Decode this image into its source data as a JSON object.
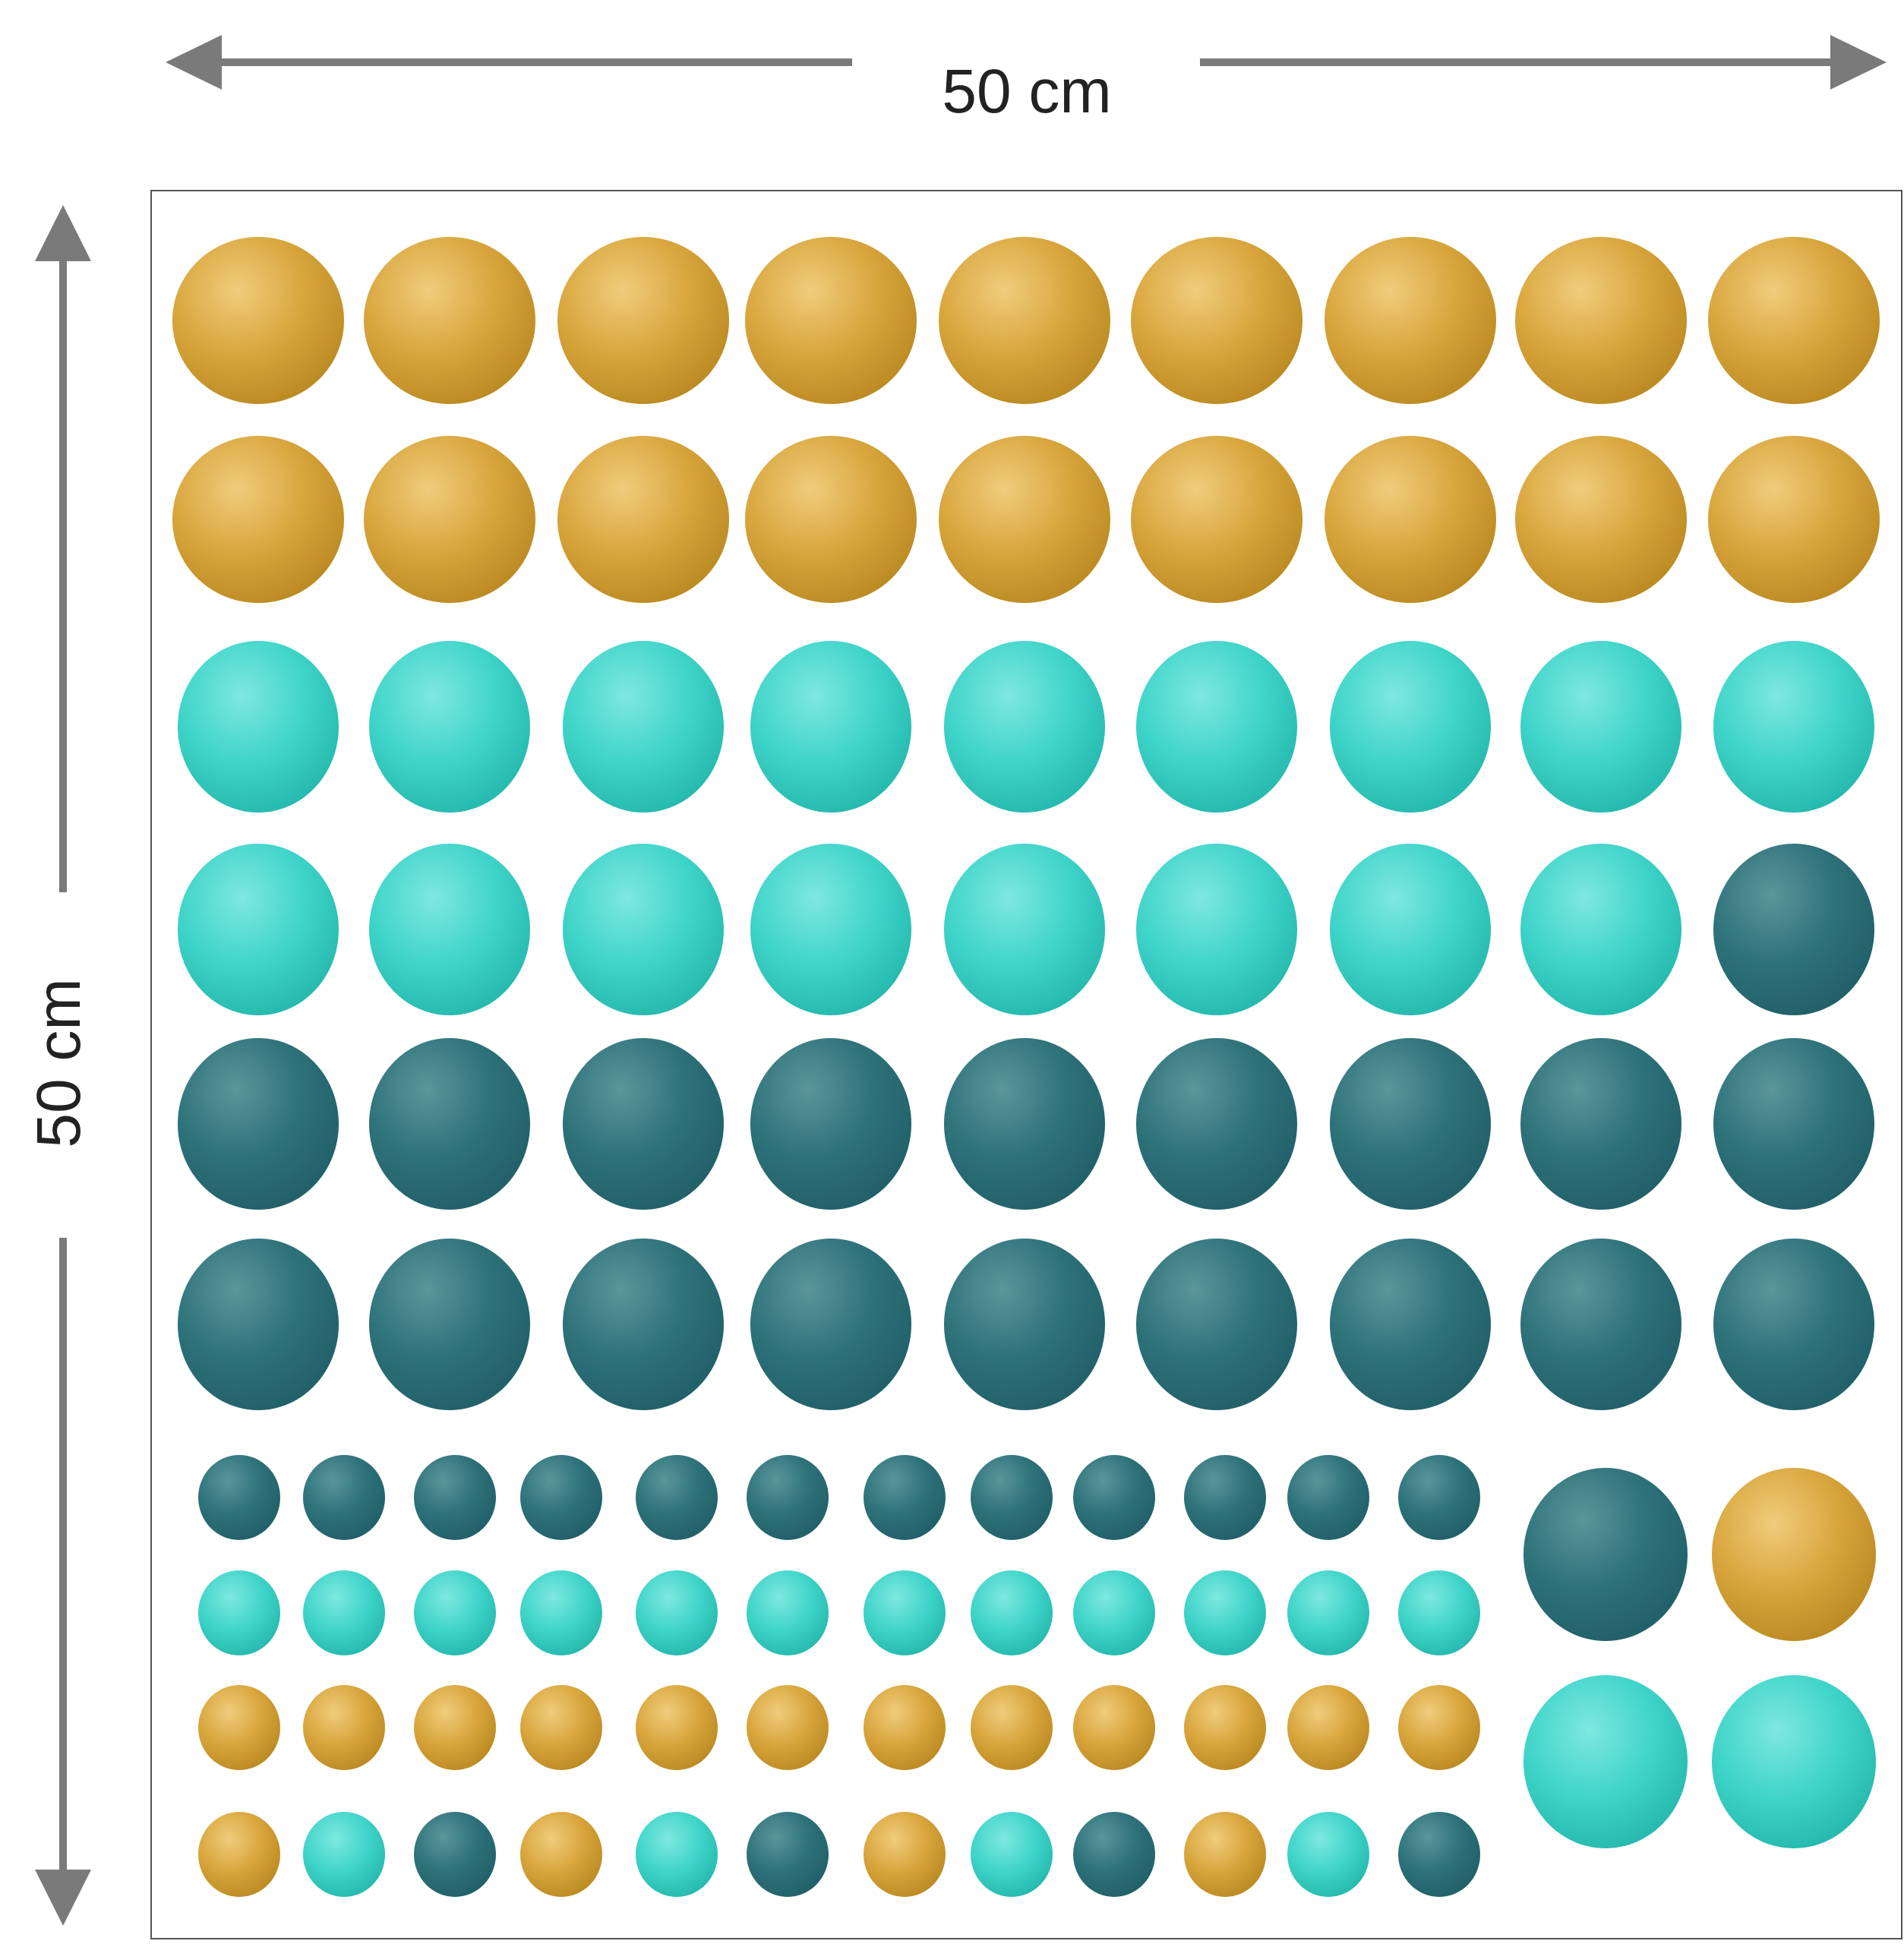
{
  "dimensions": {
    "width_label": "50 cm",
    "height_label": "50 cm"
  },
  "colors": {
    "arrow": "#7a7a7a",
    "mustard": "#d8a53c",
    "turquoise": "#3fd4c9",
    "teal": "#2e727a",
    "border": "#555555"
  },
  "sheet": {
    "large_dot_rows": [
      [
        "mustard",
        "mustard",
        "mustard",
        "mustard",
        "mustard",
        "mustard",
        "mustard",
        "mustard",
        "mustard"
      ],
      [
        "mustard",
        "mustard",
        "mustard",
        "mustard",
        "mustard",
        "mustard",
        "mustard",
        "mustard",
        "mustard"
      ],
      [
        "turquoise",
        "turquoise",
        "turquoise",
        "turquoise",
        "turquoise",
        "turquoise",
        "turquoise",
        "turquoise",
        "turquoise"
      ],
      [
        "turquoise",
        "turquoise",
        "turquoise",
        "turquoise",
        "turquoise",
        "turquoise",
        "turquoise",
        "turquoise",
        "teal"
      ],
      [
        "teal",
        "teal",
        "teal",
        "teal",
        "teal",
        "teal",
        "teal",
        "teal",
        "teal"
      ],
      [
        "teal",
        "teal",
        "teal",
        "teal",
        "teal",
        "teal",
        "teal",
        "teal",
        "teal"
      ]
    ],
    "small_dot_rows": [
      [
        "teal",
        "teal",
        "teal",
        "teal",
        "teal",
        "teal",
        "teal",
        "teal",
        "teal",
        "teal",
        "teal",
        "teal"
      ],
      [
        "turquoise",
        "turquoise",
        "turquoise",
        "turquoise",
        "turquoise",
        "turquoise",
        "turquoise",
        "turquoise",
        "turquoise",
        "turquoise",
        "turquoise",
        "turquoise"
      ],
      [
        "mustard",
        "mustard",
        "mustard",
        "mustard",
        "mustard",
        "mustard",
        "mustard",
        "mustard",
        "mustard",
        "mustard",
        "mustard",
        "mustard"
      ],
      [
        "mustard",
        "turquoise",
        "teal",
        "mustard",
        "turquoise",
        "teal",
        "mustard",
        "turquoise",
        "teal",
        "mustard",
        "turquoise",
        "teal"
      ]
    ],
    "extra_large_dots": [
      [
        "teal",
        "mustard"
      ],
      [
        "turquoise",
        "turquoise"
      ]
    ]
  }
}
